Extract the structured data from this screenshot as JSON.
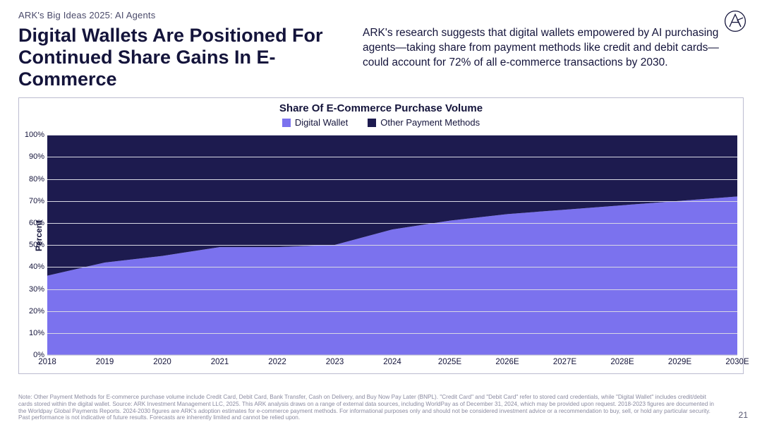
{
  "eyebrow": "ARK's Big Ideas 2025: AI Agents",
  "title": "Digital Wallets Are Positioned For Continued Share Gains In E-Commerce",
  "subtitle": "ARK's research suggests that digital wallets empowered by AI purchasing agents—taking share from payment methods like credit and debit cards—could account for 72% of all e-commerce transactions by 2030.",
  "page_number": "21",
  "footnote": "Note: Other Payment Methods for E-commerce purchase volume include Credit Card, Debit Card, Bank Transfer, Cash on Delivery, and Buy Now Pay Later (BNPL). \"Credit Card\" and \"Debit Card\" refer to stored card credentials, while \"Digital Wallet\" includes credit/debit cards stored within the digital wallet. Source: ARK Investment Management LLC, 2025. This ARK analysis draws on a range of external data sources, including WorldPay as of December 31, 2024, which may be provided upon request. 2018-2023 figures are documented in the Worldpay Global Payments Reports. 2024-2030 figures are ARK's adoption estimates for e-commerce payment methods. For informational purposes only and should not be considered investment advice or a recommendation to buy, sell, or hold any particular security. Past performance is not indicative of future results. Forecasts are inherently limited and cannot be relied upon.",
  "chart": {
    "type": "stacked-area",
    "title": "Share Of E-Commerce Purchase Volume",
    "ylabel": "Percent",
    "legend": [
      {
        "label": "Digital Wallet",
        "color": "#7b72ee"
      },
      {
        "label": "Other Payment Methods",
        "color": "#1d1b4f"
      }
    ],
    "categories": [
      "2018",
      "2019",
      "2020",
      "2021",
      "2022",
      "2023",
      "2024",
      "2025E",
      "2026E",
      "2027E",
      "2028E",
      "2029E",
      "2030E"
    ],
    "series": [
      {
        "name": "Digital Wallet",
        "color": "#7b72ee",
        "values": [
          36,
          42,
          45,
          49,
          49,
          50,
          57,
          61,
          64,
          66,
          68,
          70,
          72
        ]
      },
      {
        "name": "Other Payment Methods",
        "color": "#1d1b4f",
        "values": [
          64,
          58,
          55,
          51,
          51,
          50,
          43,
          39,
          36,
          34,
          32,
          30,
          28
        ]
      }
    ],
    "ylim": [
      0,
      100
    ],
    "ytick_step": 10,
    "ytick_suffix": "%",
    "grid_color": "#d8d8e4",
    "background_color": "#ffffff",
    "axis_color": "#bcbcd0",
    "label_fontsize": 11,
    "title_fontsize": 15
  },
  "colors": {
    "text": "#14143b",
    "muted": "#8a8aa0",
    "border": "#bcbcd0"
  }
}
